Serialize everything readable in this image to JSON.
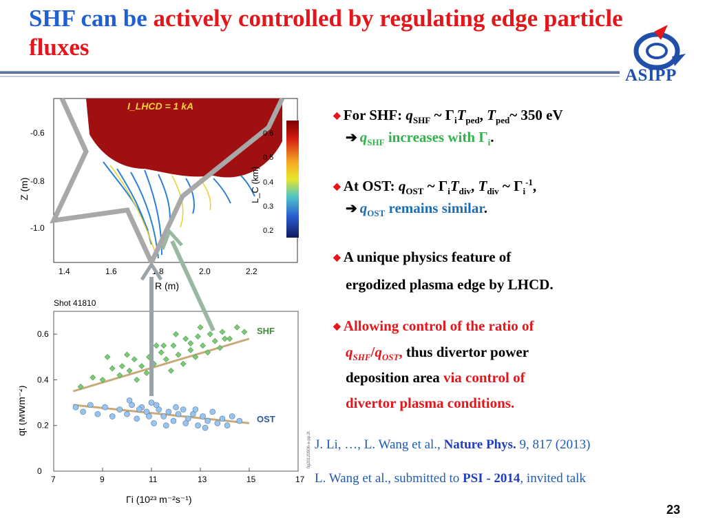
{
  "title": {
    "part1": "SHF can be",
    "part2": "actively controlled by regulating edge particle fluxes"
  },
  "logo": {
    "text": "ASIPP",
    "icon": "asipp-logo-icon"
  },
  "figure_top": {
    "label": "I_LHCD = 1 kA",
    "xlabel": "R (m)",
    "ylabel": "Z (m)",
    "xticks": [
      "1.4",
      "1.6",
      "1.8",
      "2.0",
      "2.2"
    ],
    "yticks": [
      "-0.6",
      "-0.8",
      "-1.0"
    ],
    "colorbar_label": "L_C (km)",
    "colorbar_ticks": [
      "0.6",
      "0.5",
      "0.4",
      "0.3",
      "0.2"
    ]
  },
  "figure_bottom": {
    "shot": "Shot 41810",
    "xlabel": "Γi (10²³ m⁻²s⁻¹)",
    "ylabel": "qt (MWm⁻²)",
    "xticks": [
      "7",
      "9",
      "11",
      "13",
      "15",
      "17"
    ],
    "yticks": [
      "0",
      "0.2",
      "0.4",
      "0.6"
    ],
    "series_shf": "SHF",
    "series_ost": "OST",
    "side_text": "fig20120906-a-pp.2t"
  },
  "bullets": [
    {
      "lead": "For SHF: ",
      "formula_shf": "q",
      "sub_shf": "SHF",
      "mid": " ~ Γ",
      "sub_i": "i",
      "t": "T",
      "sub_ped": "ped",
      "comma": ", ",
      "t2": "T",
      "sub_ped2": "ped",
      "tail": "~ 350 eV",
      "line2_q": "q",
      "line2_sub": "SHF",
      "line2_text": " increases with Γ",
      "line2_sub_i": "i",
      "line2_dot": "."
    },
    {
      "lead": "At OST: ",
      "q": "q",
      "sub_ost": "OST",
      "mid": " ~ Γ",
      "sub_i": "i",
      "t": "T",
      "sub_div": "div",
      "comma": ", ",
      "t2": "T",
      "sub_div2": "div",
      "mid2": " ~ Γ",
      "sub_i2": "i",
      "sup": "-1",
      "tail": ",",
      "line2_q": "q",
      "line2_sub": "OST",
      "line2_text": " remains similar",
      "line2_dot": "."
    },
    {
      "line1": "A unique physics feature of",
      "line2": "ergodized plasma edge by LHCD."
    },
    {
      "line1": "Allowing control of the ratio of",
      "q1": "q",
      "s1": "SHF",
      "slash": "/",
      "q2": "q",
      "s2": "OST",
      "comma": ",",
      "line2_tail": " thus divertor power",
      "line3a": "deposition area ",
      "line3b": "via control of",
      "line4": "divertor plasma conditions."
    }
  ],
  "references": [
    {
      "pre": "J. Li, …, L. Wang et al., ",
      "journal": "Nature Phys.",
      "post": " 9, 817 (2013)"
    },
    {
      "pre": "L. Wang et al., submitted to ",
      "journal": "PSI - 2014",
      "post": ", invited talk"
    }
  ],
  "page_number": "23",
  "chart_data": {
    "type": "scatter",
    "title": "Shot 41810",
    "xlabel": "Γi (10²³ m⁻²s⁻¹)",
    "ylabel": "qt (MWm⁻²)",
    "xlim": [
      7,
      17
    ],
    "ylim": [
      0,
      0.7
    ],
    "grid": false,
    "series": [
      {
        "name": "SHF",
        "color": "#7ec87a",
        "marker": "diamond",
        "x": [
          8.1,
          8.6,
          9.0,
          9.4,
          9.7,
          10.1,
          10.3,
          10.6,
          10.9,
          11.1,
          11.4,
          11.6,
          11.9,
          12.1,
          12.4,
          12.6,
          12.9,
          13.1,
          13.4,
          13.6,
          13.9,
          14.2,
          14.5,
          14.8,
          9.2,
          10.0,
          10.8,
          11.5,
          12.3,
          13.0,
          13.8,
          10.4,
          11.2,
          12.0,
          12.8,
          14.0,
          9.8,
          11.8,
          13.3,
          12.6
        ],
        "y": [
          0.37,
          0.41,
          0.4,
          0.45,
          0.42,
          0.44,
          0.49,
          0.46,
          0.5,
          0.47,
          0.52,
          0.49,
          0.55,
          0.51,
          0.58,
          0.53,
          0.59,
          0.55,
          0.6,
          0.57,
          0.61,
          0.58,
          0.63,
          0.61,
          0.5,
          0.51,
          0.43,
          0.55,
          0.47,
          0.63,
          0.54,
          0.4,
          0.55,
          0.6,
          0.5,
          0.58,
          0.46,
          0.44,
          0.52,
          0.56
        ],
        "fit": [
          [
            7.8,
            0.35
          ],
          [
            15.0,
            0.58
          ]
        ]
      },
      {
        "name": "OST",
        "color": "#9cc4ea",
        "marker": "circle",
        "x": [
          7.9,
          8.2,
          8.5,
          8.8,
          9.1,
          9.4,
          9.7,
          10.0,
          10.2,
          10.4,
          10.6,
          10.8,
          11.0,
          11.1,
          11.3,
          11.5,
          11.7,
          11.9,
          12.1,
          12.3,
          12.5,
          12.7,
          12.9,
          13.1,
          13.3,
          13.5,
          13.7,
          13.9,
          14.1,
          14.3,
          14.6,
          10.1,
          10.5,
          10.9,
          11.2,
          11.6,
          12.0,
          12.4,
          12.8,
          13.2
        ],
        "y": [
          0.28,
          0.26,
          0.29,
          0.25,
          0.28,
          0.24,
          0.27,
          0.25,
          0.29,
          0.23,
          0.28,
          0.26,
          0.3,
          0.21,
          0.27,
          0.24,
          0.26,
          0.22,
          0.25,
          0.27,
          0.23,
          0.25,
          0.2,
          0.24,
          0.22,
          0.26,
          0.21,
          0.23,
          0.2,
          0.24,
          0.22,
          0.31,
          0.27,
          0.24,
          0.29,
          0.2,
          0.28,
          0.21,
          0.27,
          0.19
        ],
        "fit": [
          [
            7.8,
            0.29
          ],
          [
            15.0,
            0.21
          ]
        ]
      }
    ]
  }
}
